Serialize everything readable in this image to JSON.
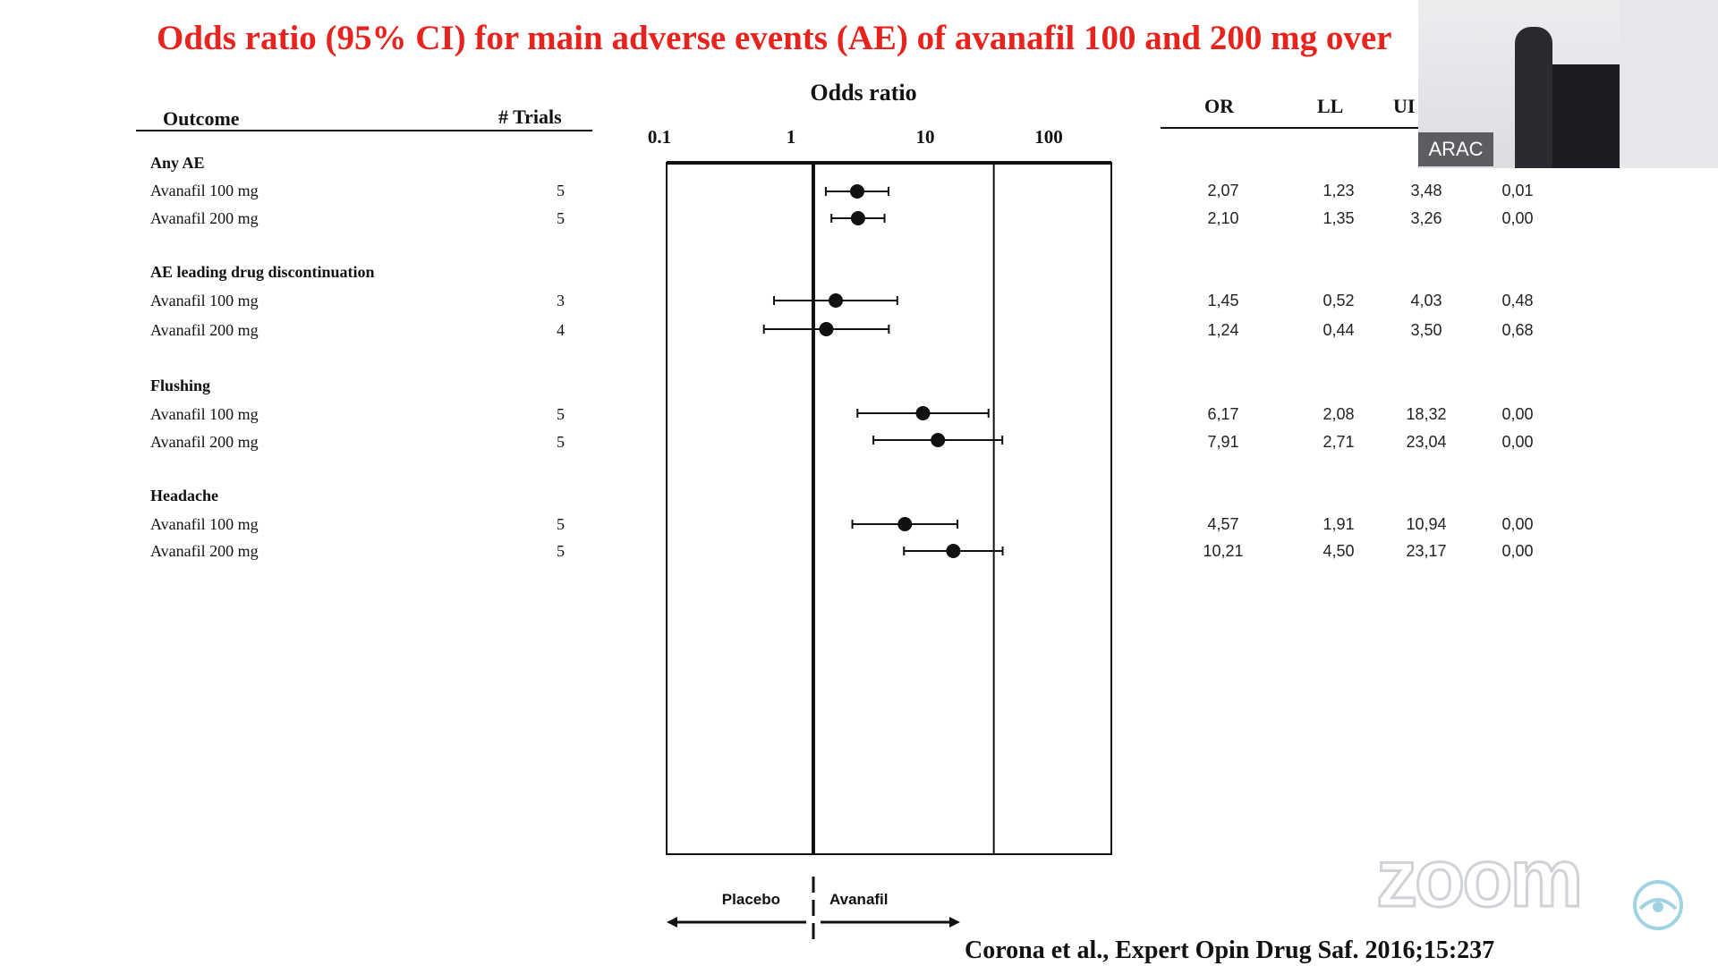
{
  "slide": {
    "title": "Odds ratio (95% CI) for main adverse events (AE) of avanafil 100 and 200 mg over",
    "citation": "Corona et al., Expert Opin Drug Saf. 2016;15:237"
  },
  "table": {
    "headers": {
      "outcome": "Outcome",
      "trials": "# Trials",
      "or": "OR",
      "ll": "LL",
      "ul": "UI"
    },
    "groups": [
      {
        "name": "Any  AE",
        "rows": [
          {
            "label": "Avanafil 100 mg",
            "trials": "5",
            "or": "2,07",
            "ll": "1,23",
            "ul": "3,48",
            "p": "0,01"
          },
          {
            "label": "Avanafil 200 mg",
            "trials": "5",
            "or": "2,10",
            "ll": "1,35",
            "ul": "3,26",
            "p": "0,00"
          }
        ]
      },
      {
        "name": "AE  leading    drug    discontinuation",
        "rows": [
          {
            "label": "Avanafil 100 mg",
            "trials": "3",
            "or": "1,45",
            "ll": "0,52",
            "ul": "4,03",
            "p": "0,48"
          },
          {
            "label": "Avanafil 200 mg",
            "trials": "4",
            "or": "1,24",
            "ll": "0,44",
            "ul": "3,50",
            "p": "0,68"
          }
        ]
      },
      {
        "name": "Flushing",
        "rows": [
          {
            "label": "Avanafil 100 mg",
            "trials": "5",
            "or": "6,17",
            "ll": "2,08",
            "ul": "18,32",
            "p": "0,00"
          },
          {
            "label": "Avanafil 200 mg",
            "trials": "5",
            "or": "7,91",
            "ll": "2,71",
            "ul": "23,04",
            "p": "0,00"
          }
        ]
      },
      {
        "name": "Headache",
        "rows": [
          {
            "label": "Avanafil   100 mg",
            "trials": "5",
            "or": "4,57",
            "ll": "1,91",
            "ul": "10,94",
            "p": "0,00"
          },
          {
            "label": "Avanafil 200 mg",
            "trials": "5",
            "or": "10,21",
            "ll": "4,50",
            "ul": "23,17",
            "p": "0,00"
          }
        ]
      }
    ]
  },
  "chart_data": {
    "type": "scatter",
    "title": "Odds ratio",
    "xscale": "log",
    "xticks": [
      "0.1",
      "1",
      "10",
      "100"
    ],
    "reference_lines": [
      1,
      20
    ],
    "left_label": "Placebo",
    "right_label": "Avanafil",
    "series": [
      {
        "values": [
          {
            "or": 2.07,
            "ll": 1.23,
            "ul": 3.48
          },
          {
            "or": 2.1,
            "ll": 1.35,
            "ul": 3.26
          },
          {
            "or": 1.45,
            "ll": 0.52,
            "ul": 4.03
          },
          {
            "or": 1.24,
            "ll": 0.44,
            "ul": 3.5
          },
          {
            "or": 6.17,
            "ll": 2.08,
            "ul": 18.32
          },
          {
            "or": 7.91,
            "ll": 2.71,
            "ul": 23.04
          },
          {
            "or": 4.57,
            "ll": 1.91,
            "ul": 10.94
          },
          {
            "or": 10.21,
            "ll": 4.5,
            "ul": 23.17
          }
        ]
      }
    ]
  },
  "overlay": {
    "camera_label": "ARAC",
    "watermark": "zoom"
  },
  "colors": {
    "title": "#e8231d",
    "ink": "#111111"
  }
}
